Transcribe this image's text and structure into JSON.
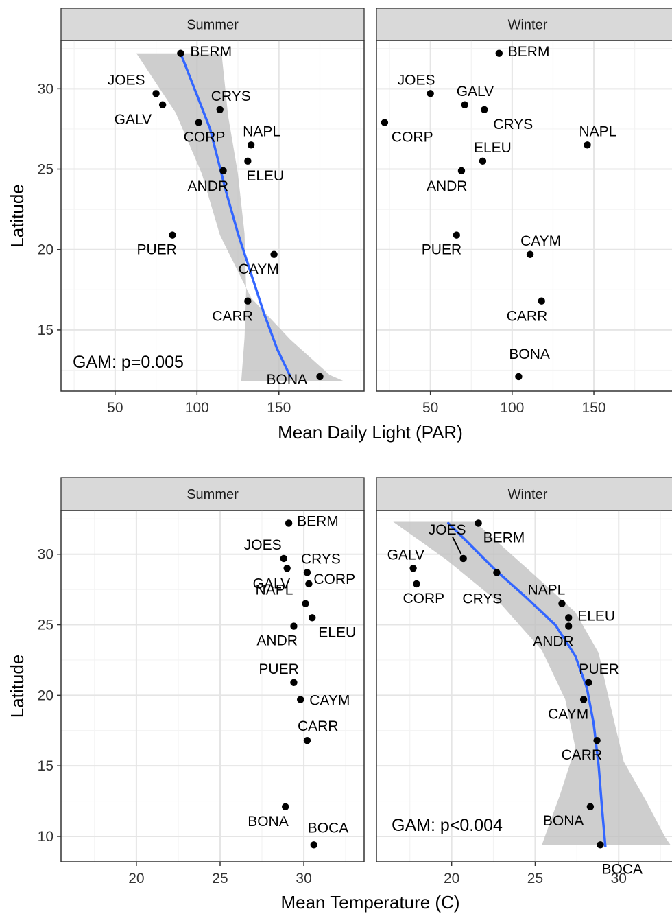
{
  "figure": {
    "top_xlabel": "Mean Daily Light (PAR)",
    "bottom_xlabel": "Mean Temperature (C)",
    "ylabel": "Latitude",
    "colors": {
      "strip": "#d9d9d9",
      "grid_major": "#e5e5e5",
      "grid_minor": "#f3f3f3",
      "point": "#000000",
      "fit_line": "#3366ff",
      "ribbon": "#bdbdbd"
    }
  },
  "chart_data": [
    {
      "type": "scatter",
      "panel": "Summer",
      "row": "light",
      "xlabel": "Mean Daily Light (PAR)",
      "ylabel": "Latitude",
      "xlim": [
        17,
        202
      ],
      "ylim": [
        11.2,
        33.0
      ],
      "xticks": [
        50,
        100,
        150
      ],
      "yticks": [
        15,
        20,
        25,
        30
      ],
      "annotation": "GAM: p=0.005",
      "points": [
        {
          "label": "BERM",
          "x": 90,
          "y": 32.2
        },
        {
          "label": "JOES",
          "x": 75,
          "y": 29.7
        },
        {
          "label": "GALV",
          "x": 79,
          "y": 29.0
        },
        {
          "label": "CRYS",
          "x": 114,
          "y": 28.7
        },
        {
          "label": "CORP",
          "x": 101,
          "y": 27.9
        },
        {
          "label": "NAPL",
          "x": 133,
          "y": 26.5
        },
        {
          "label": "ELEU",
          "x": 131,
          "y": 25.5
        },
        {
          "label": "ANDR",
          "x": 116,
          "y": 24.9
        },
        {
          "label": "PUER",
          "x": 85,
          "y": 20.9
        },
        {
          "label": "CAYM",
          "x": 147,
          "y": 19.7
        },
        {
          "label": "CARR",
          "x": 131,
          "y": 16.8
        },
        {
          "label": "BONA",
          "x": 175,
          "y": 12.1
        }
      ],
      "fit": {
        "line": [
          {
            "x": 90,
            "y": 32.2
          },
          {
            "x": 100,
            "y": 29.6
          },
          {
            "x": 108,
            "y": 27.5
          },
          {
            "x": 113,
            "y": 25.5
          },
          {
            "x": 118,
            "y": 23.5
          },
          {
            "x": 125,
            "y": 21.0
          },
          {
            "x": 133,
            "y": 18.5
          },
          {
            "x": 141,
            "y": 16.0
          },
          {
            "x": 149,
            "y": 13.8
          },
          {
            "x": 157,
            "y": 12.1
          }
        ],
        "ribbon_upper": [
          {
            "x": 63,
            "y": 32.2
          },
          {
            "x": 87,
            "y": 28.5
          },
          {
            "x": 103,
            "y": 24.7
          },
          {
            "x": 114,
            "y": 20.9
          },
          {
            "x": 133,
            "y": 17.0
          },
          {
            "x": 157,
            "y": 14.4
          },
          {
            "x": 181,
            "y": 12.2
          },
          {
            "x": 190,
            "y": 11.8
          }
        ],
        "ribbon_lower": [
          {
            "x": 115,
            "y": 32.2
          },
          {
            "x": 119,
            "y": 28.3
          },
          {
            "x": 125,
            "y": 24.7
          },
          {
            "x": 129,
            "y": 21.0
          },
          {
            "x": 130,
            "y": 17.5
          },
          {
            "x": 129,
            "y": 14.5
          },
          {
            "x": 127,
            "y": 11.8
          }
        ]
      }
    },
    {
      "type": "scatter",
      "panel": "Winter",
      "row": "light",
      "xlabel": "Mean Daily Light (PAR)",
      "ylabel": "Latitude",
      "xlim": [
        17,
        202
      ],
      "ylim": [
        11.2,
        33.0
      ],
      "xticks": [
        50,
        100,
        150
      ],
      "yticks": [
        15,
        20,
        25,
        30
      ],
      "points": [
        {
          "label": "BERM",
          "x": 92,
          "y": 32.2
        },
        {
          "label": "JOES",
          "x": 50,
          "y": 29.7
        },
        {
          "label": "GALV",
          "x": 71,
          "y": 29.0
        },
        {
          "label": "CRYS",
          "x": 83,
          "y": 28.7
        },
        {
          "label": "CORP",
          "x": 22,
          "y": 27.9
        },
        {
          "label": "NAPL",
          "x": 146,
          "y": 26.5
        },
        {
          "label": "ELEU",
          "x": 82,
          "y": 25.5
        },
        {
          "label": "ANDR",
          "x": 69,
          "y": 24.9
        },
        {
          "label": "PUER",
          "x": 66,
          "y": 20.9
        },
        {
          "label": "CAYM",
          "x": 111,
          "y": 19.7
        },
        {
          "label": "CARR",
          "x": 118,
          "y": 16.8
        },
        {
          "label": "BONA",
          "x": 104,
          "y": 12.1
        }
      ]
    },
    {
      "type": "scatter",
      "panel": "Summer",
      "row": "temperature",
      "xlabel": "Mean Temperature (C)",
      "ylabel": "Latitude",
      "xlim": [
        15.5,
        33.6
      ],
      "ylim": [
        8.2,
        33.1
      ],
      "xticks": [
        20,
        25,
        30
      ],
      "yticks": [
        10,
        15,
        20,
        25,
        30
      ],
      "points": [
        {
          "label": "BERM",
          "x": 29.1,
          "y": 32.2
        },
        {
          "label": "JOES",
          "x": 28.8,
          "y": 29.7
        },
        {
          "label": "GALV",
          "x": 29.0,
          "y": 29.0
        },
        {
          "label": "CRYS",
          "x": 30.2,
          "y": 28.7
        },
        {
          "label": "CORP",
          "x": 30.3,
          "y": 27.9
        },
        {
          "label": "NAPL",
          "x": 30.1,
          "y": 26.5
        },
        {
          "label": "ELEU",
          "x": 30.5,
          "y": 25.5
        },
        {
          "label": "ANDR",
          "x": 29.4,
          "y": 24.9
        },
        {
          "label": "PUER",
          "x": 29.4,
          "y": 20.9
        },
        {
          "label": "CAYM",
          "x": 29.8,
          "y": 19.7
        },
        {
          "label": "CARR",
          "x": 30.2,
          "y": 16.8
        },
        {
          "label": "BONA",
          "x": 28.9,
          "y": 12.1
        },
        {
          "label": "BOCA",
          "x": 30.6,
          "y": 9.4
        }
      ]
    },
    {
      "type": "scatter",
      "panel": "Winter",
      "row": "temperature",
      "xlabel": "Mean Temperature (C)",
      "ylabel": "Latitude",
      "xlim": [
        15.5,
        33.6
      ],
      "ylim": [
        8.2,
        33.1
      ],
      "xticks": [
        20,
        25,
        30
      ],
      "yticks": [
        10,
        15,
        20,
        25,
        30
      ],
      "annotation": "GAM: p<0.004",
      "points": [
        {
          "label": "BERM",
          "x": 21.6,
          "y": 32.2
        },
        {
          "label": "JOES",
          "x": 20.7,
          "y": 29.7
        },
        {
          "label": "GALV",
          "x": 17.7,
          "y": 29.0
        },
        {
          "label": "CRYS",
          "x": 22.7,
          "y": 28.7
        },
        {
          "label": "CORP",
          "x": 17.9,
          "y": 27.9
        },
        {
          "label": "NAPL",
          "x": 26.6,
          "y": 26.5
        },
        {
          "label": "ELEU",
          "x": 27.0,
          "y": 25.5
        },
        {
          "label": "ANDR",
          "x": 27.0,
          "y": 24.9
        },
        {
          "label": "PUER",
          "x": 28.2,
          "y": 20.9
        },
        {
          "label": "CAYM",
          "x": 27.9,
          "y": 19.7
        },
        {
          "label": "CARR",
          "x": 28.7,
          "y": 16.8
        },
        {
          "label": "BONA",
          "x": 28.3,
          "y": 12.1
        },
        {
          "label": "BOCA",
          "x": 28.9,
          "y": 9.4
        }
      ],
      "fit": {
        "line": [
          {
            "x": 19.8,
            "y": 32.2
          },
          {
            "x": 21.0,
            "y": 30.8
          },
          {
            "x": 22.6,
            "y": 28.9
          },
          {
            "x": 24.4,
            "y": 27.0
          },
          {
            "x": 26.2,
            "y": 25.0
          },
          {
            "x": 27.4,
            "y": 22.8
          },
          {
            "x": 28.1,
            "y": 20.5
          },
          {
            "x": 28.5,
            "y": 18.0
          },
          {
            "x": 28.8,
            "y": 15.0
          },
          {
            "x": 29.0,
            "y": 12.0
          },
          {
            "x": 29.2,
            "y": 9.3
          }
        ],
        "ribbon_upper": [
          {
            "x": 21.4,
            "y": 32.3
          },
          {
            "x": 24.6,
            "y": 28.9
          },
          {
            "x": 27.4,
            "y": 25.9
          },
          {
            "x": 28.8,
            "y": 23.0
          },
          {
            "x": 29.4,
            "y": 19.8
          },
          {
            "x": 30.3,
            "y": 15.3
          },
          {
            "x": 31.6,
            "y": 12.6
          },
          {
            "x": 32.8,
            "y": 9.9
          },
          {
            "x": 33.1,
            "y": 9.4
          }
        ],
        "ribbon_lower": [
          {
            "x": 16.5,
            "y": 32.3
          },
          {
            "x": 19.7,
            "y": 29.6
          },
          {
            "x": 23.0,
            "y": 26.4
          },
          {
            "x": 25.4,
            "y": 23.2
          },
          {
            "x": 26.8,
            "y": 19.7
          },
          {
            "x": 27.4,
            "y": 16.3
          },
          {
            "x": 26.5,
            "y": 13.0
          },
          {
            "x": 25.4,
            "y": 9.4
          }
        ]
      }
    }
  ]
}
